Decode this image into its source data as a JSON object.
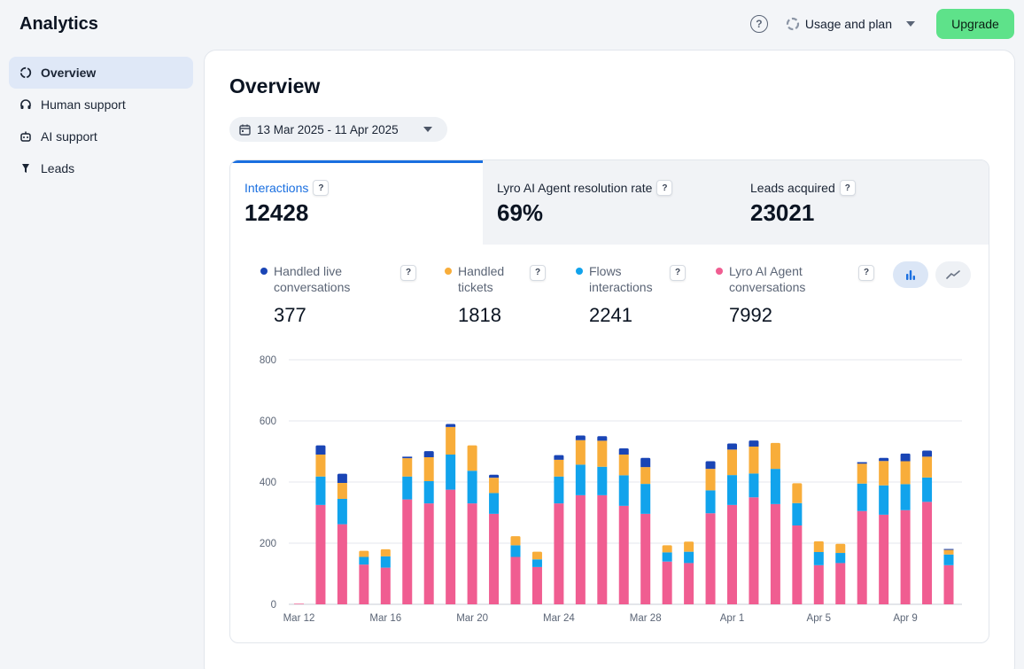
{
  "app": {
    "title": "Analytics"
  },
  "topbar": {
    "help": "?",
    "usage_label": "Usage and plan",
    "upgrade_label": "Upgrade"
  },
  "sidebar": {
    "items": [
      {
        "label": "Overview",
        "icon": "overview-icon",
        "active": true
      },
      {
        "label": "Human support",
        "icon": "headset-icon",
        "active": false
      },
      {
        "label": "AI support",
        "icon": "bot-icon",
        "active": false
      },
      {
        "label": "Leads",
        "icon": "funnel-icon",
        "active": false
      }
    ]
  },
  "main": {
    "title": "Overview",
    "date_range": "13 Mar 2025 - 11 Apr 2025",
    "tabs": [
      {
        "label": "Interactions",
        "value": "12428",
        "help": "?"
      },
      {
        "label": "Lyro AI Agent resolution rate",
        "value": "69%",
        "help": "?"
      },
      {
        "label": "Leads acquired",
        "value": "23021",
        "help": "?"
      }
    ],
    "metrics": [
      {
        "label_line1": "Handled live",
        "label_line2": "conversations",
        "value": "377",
        "color": "#1a45b5",
        "help": "?"
      },
      {
        "label_line1": "Handled",
        "label_line2": "tickets",
        "value": "1818",
        "color": "#f8ad3a",
        "help": "?"
      },
      {
        "label_line1": "Flows",
        "label_line2": "interactions",
        "value": "2241",
        "color": "#11a3ec",
        "help": "?"
      },
      {
        "label_line1": "Lyro AI Agent",
        "label_line2": "conversations",
        "value": "7992",
        "color": "#f05d91",
        "help": "?"
      }
    ]
  },
  "chart_data": {
    "type": "bar",
    "stacked": true,
    "categories": [
      "Mar 12",
      "Mar 13",
      "Mar 14",
      "Mar 15",
      "Mar 16",
      "Mar 17",
      "Mar 18",
      "Mar 19",
      "Mar 20",
      "Mar 21",
      "Mar 22",
      "Mar 23",
      "Mar 24",
      "Mar 25",
      "Mar 26",
      "Mar 27",
      "Mar 28",
      "Mar 29",
      "Mar 30",
      "Mar 31",
      "Apr 1",
      "Apr 2",
      "Apr 3",
      "Apr 4",
      "Apr 5",
      "Apr 6",
      "Apr 7",
      "Apr 8",
      "Apr 9",
      "Apr 10",
      "Apr 11"
    ],
    "x_tick_labels": [
      "Mar 12",
      "Mar 16",
      "Mar 20",
      "Mar 24",
      "Mar 28",
      "Apr 1",
      "Apr 5",
      "Apr 9"
    ],
    "x_tick_indices": [
      0,
      4,
      8,
      12,
      16,
      20,
      24,
      28
    ],
    "series": [
      {
        "name": "Lyro AI Agent conversations",
        "color": "#f05d91",
        "values": [
          2,
          325,
          262,
          130,
          120,
          343,
          330,
          375,
          330,
          296,
          155,
          122,
          330,
          357,
          357,
          322,
          296,
          140,
          135,
          298,
          325,
          350,
          328,
          258,
          128,
          135,
          305,
          293,
          308,
          335,
          128
        ]
      },
      {
        "name": "Flows interactions",
        "color": "#11a3ec",
        "values": [
          0,
          93,
          83,
          25,
          37,
          75,
          73,
          115,
          107,
          68,
          38,
          25,
          88,
          100,
          93,
          100,
          98,
          30,
          37,
          75,
          98,
          78,
          115,
          73,
          43,
          33,
          90,
          96,
          85,
          80,
          35
        ]
      },
      {
        "name": "Handled tickets",
        "color": "#f8ad3a",
        "values": [
          0,
          72,
          52,
          20,
          23,
          60,
          78,
          90,
          83,
          50,
          30,
          25,
          55,
          80,
          85,
          68,
          55,
          23,
          33,
          70,
          83,
          88,
          85,
          65,
          35,
          30,
          65,
          80,
          75,
          68,
          15
        ]
      },
      {
        "name": "Handled live conversations",
        "color": "#1a45b5",
        "values": [
          0,
          30,
          30,
          0,
          0,
          5,
          20,
          10,
          0,
          10,
          0,
          0,
          15,
          15,
          15,
          20,
          30,
          0,
          0,
          25,
          20,
          20,
          0,
          0,
          0,
          0,
          5,
          10,
          25,
          20,
          3
        ]
      }
    ],
    "ylim": [
      0,
      800
    ],
    "y_ticks": [
      0,
      200,
      400,
      600,
      800
    ],
    "grid": true
  }
}
